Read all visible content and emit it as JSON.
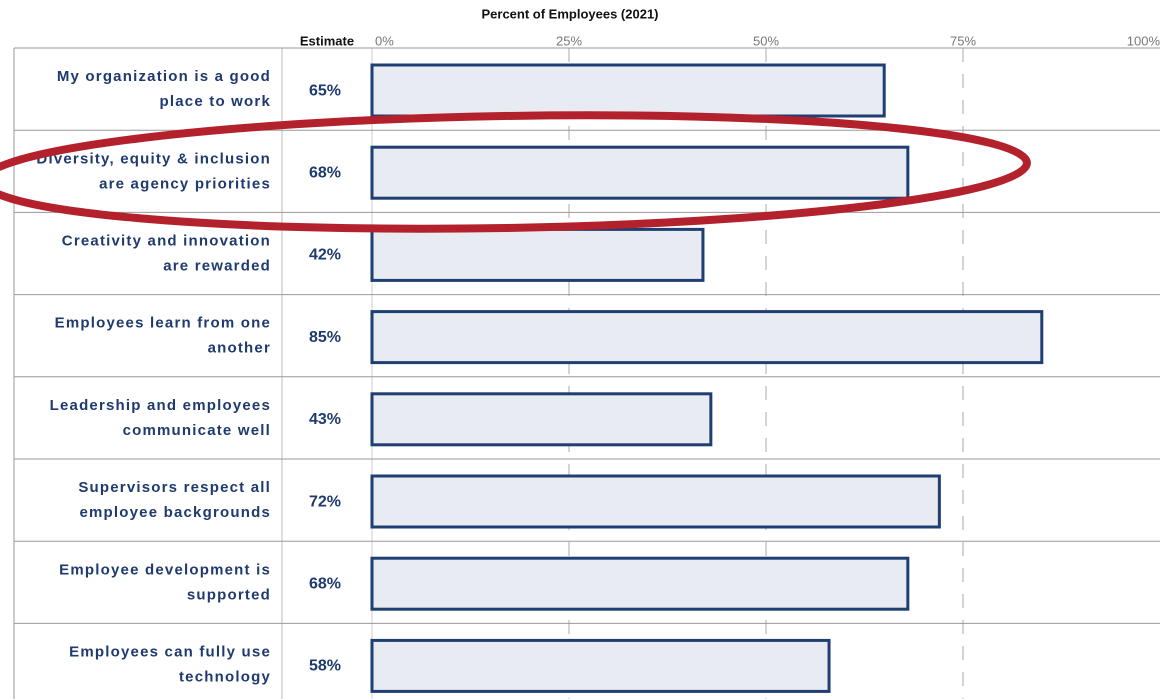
{
  "chart_data": {
    "type": "bar",
    "orientation": "horizontal",
    "x_label": "Percent of Employees (2021)",
    "estimate_header": "Estimate",
    "categories": [
      [
        "My organization is a good",
        "place to work"
      ],
      [
        "Diversity, equity & inclusion",
        "are agency priorities"
      ],
      [
        "Creativity and innovation",
        "are rewarded"
      ],
      [
        "Employees learn from one",
        "another"
      ],
      [
        "Leadership and employees",
        "communicate well"
      ],
      [
        "Supervisors respect all",
        "employee backgrounds"
      ],
      [
        "Employee development is",
        "supported"
      ],
      [
        "Employees can fully use",
        "technology"
      ]
    ],
    "values": [
      65,
      68,
      42,
      85,
      43,
      72,
      68,
      58
    ],
    "value_labels": [
      "65%",
      "68%",
      "42%",
      "85%",
      "43%",
      "72%",
      "68%",
      "58%"
    ],
    "color": "#e8ebf2",
    "edge_color": "#1f3f73",
    "xlim": [
      0,
      100
    ],
    "xticks": [
      {
        "value": 0,
        "label": "0%"
      },
      {
        "value": 25,
        "label": "25%"
      },
      {
        "value": 50,
        "label": "50%"
      },
      {
        "value": 75,
        "label": "75%"
      },
      {
        "value": 100,
        "label": "100%"
      }
    ],
    "grid": true
  }
}
